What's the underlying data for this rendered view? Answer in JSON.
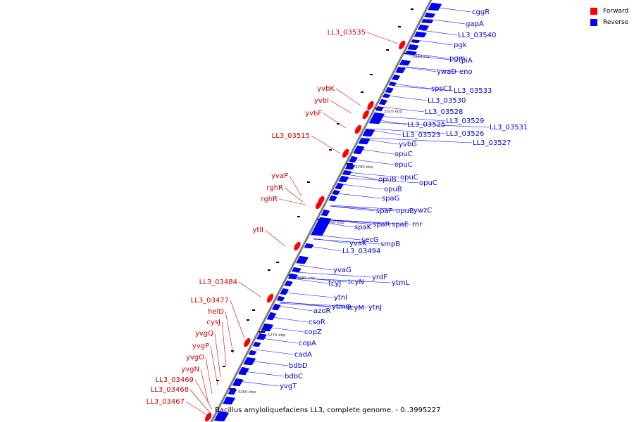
{
  "caption": "Bacillus amyloliquefaciens LL3, complete genome. - 0..3995227",
  "legend": {
    "forward_label": "Forward",
    "reverse_label": "Reverse",
    "forward_color": "#ff0000",
    "reverse_color": "#0000ff"
  },
  "colors": {
    "forward_label": "#cc0000",
    "reverse_label": "#0000cc",
    "backbone": "#808080"
  },
  "ticks": [
    "3320 kbp",
    "3310 kbp",
    "3300 kbp",
    "3290 kbp",
    "3280 kbp",
    "3270 kbp",
    "3260 kbp"
  ],
  "reverse_labels": [
    "cggR",
    "gapA",
    "LL3_03540",
    "pgk",
    "pgm",
    "tpiA",
    "ywaD",
    "eno",
    "spsC1",
    "LL3_03533",
    "LL3_03530",
    "LL3_03528",
    "LL3_03529",
    "LL3_03531",
    "LL3_03525",
    "LL3_03526",
    "LL3_03523",
    "LL3_03527",
    "yvbG",
    "opuC",
    "opuC",
    "opuB",
    "opuC",
    "opuC",
    "opuB",
    "spaG",
    "spaF",
    "opuB",
    "ywzC",
    "spaK",
    "spaR",
    "spaE",
    "rnr",
    "yvaK",
    "secG",
    "smpB",
    "LL3_03494",
    "yvaG",
    "yrdF",
    "ytmL",
    "tcyJ",
    "tcyN",
    "ytnI",
    "ytmO",
    "tcyM",
    "ytnJ",
    "azoR",
    "csoR",
    "copZ",
    "copA",
    "cadA",
    "bdbD",
    "bdbC",
    "yvgT"
  ],
  "forward_labels": [
    "LL3_03535",
    "yvbK",
    "yvbI",
    "yvbF",
    "LL3_03515",
    "yvaP",
    "rghR",
    "rghR",
    "ytlI",
    "LL3_03484",
    "LL3_03477",
    "helD",
    "cysJ",
    "yvgQ",
    "yvgP",
    "yvgO",
    "yvgN",
    "LL3_03469",
    "LL3_03468",
    "LL3_03467"
  ]
}
